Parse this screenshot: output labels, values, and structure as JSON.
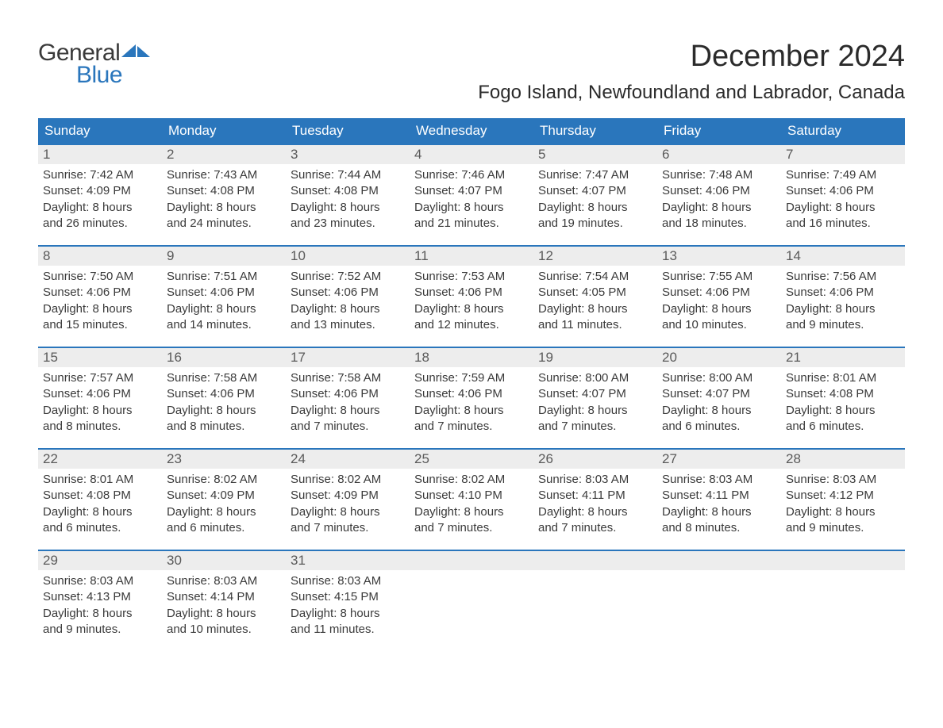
{
  "logo": {
    "word1": "General",
    "word2": "Blue",
    "word1_color": "#3a3a3a",
    "word2_color": "#2a76bc"
  },
  "title": "December 2024",
  "location": "Fogo Island, Newfoundland and Labrador, Canada",
  "header_bg": "#2a76bc",
  "header_fg": "#ffffff",
  "daynum_bg": "#ededed",
  "cell_border_color": "#2a76bc",
  "text_color": "#3a3a3a",
  "font_family": "Arial, Helvetica, sans-serif",
  "title_fontsize": 38,
  "location_fontsize": 24,
  "header_fontsize": 17,
  "content_fontsize": 15,
  "day_headers": [
    "Sunday",
    "Monday",
    "Tuesday",
    "Wednesday",
    "Thursday",
    "Friday",
    "Saturday"
  ],
  "weeks": [
    [
      {
        "n": "1",
        "sunrise": "7:42 AM",
        "sunset": "4:09 PM",
        "day_h": "8",
        "day_m": "26"
      },
      {
        "n": "2",
        "sunrise": "7:43 AM",
        "sunset": "4:08 PM",
        "day_h": "8",
        "day_m": "24"
      },
      {
        "n": "3",
        "sunrise": "7:44 AM",
        "sunset": "4:08 PM",
        "day_h": "8",
        "day_m": "23"
      },
      {
        "n": "4",
        "sunrise": "7:46 AM",
        "sunset": "4:07 PM",
        "day_h": "8",
        "day_m": "21"
      },
      {
        "n": "5",
        "sunrise": "7:47 AM",
        "sunset": "4:07 PM",
        "day_h": "8",
        "day_m": "19"
      },
      {
        "n": "6",
        "sunrise": "7:48 AM",
        "sunset": "4:06 PM",
        "day_h": "8",
        "day_m": "18"
      },
      {
        "n": "7",
        "sunrise": "7:49 AM",
        "sunset": "4:06 PM",
        "day_h": "8",
        "day_m": "16"
      }
    ],
    [
      {
        "n": "8",
        "sunrise": "7:50 AM",
        "sunset": "4:06 PM",
        "day_h": "8",
        "day_m": "15"
      },
      {
        "n": "9",
        "sunrise": "7:51 AM",
        "sunset": "4:06 PM",
        "day_h": "8",
        "day_m": "14"
      },
      {
        "n": "10",
        "sunrise": "7:52 AM",
        "sunset": "4:06 PM",
        "day_h": "8",
        "day_m": "13"
      },
      {
        "n": "11",
        "sunrise": "7:53 AM",
        "sunset": "4:06 PM",
        "day_h": "8",
        "day_m": "12"
      },
      {
        "n": "12",
        "sunrise": "7:54 AM",
        "sunset": "4:05 PM",
        "day_h": "8",
        "day_m": "11"
      },
      {
        "n": "13",
        "sunrise": "7:55 AM",
        "sunset": "4:06 PM",
        "day_h": "8",
        "day_m": "10"
      },
      {
        "n": "14",
        "sunrise": "7:56 AM",
        "sunset": "4:06 PM",
        "day_h": "8",
        "day_m": "9"
      }
    ],
    [
      {
        "n": "15",
        "sunrise": "7:57 AM",
        "sunset": "4:06 PM",
        "day_h": "8",
        "day_m": "8"
      },
      {
        "n": "16",
        "sunrise": "7:58 AM",
        "sunset": "4:06 PM",
        "day_h": "8",
        "day_m": "8"
      },
      {
        "n": "17",
        "sunrise": "7:58 AM",
        "sunset": "4:06 PM",
        "day_h": "8",
        "day_m": "7"
      },
      {
        "n": "18",
        "sunrise": "7:59 AM",
        "sunset": "4:06 PM",
        "day_h": "8",
        "day_m": "7"
      },
      {
        "n": "19",
        "sunrise": "8:00 AM",
        "sunset": "4:07 PM",
        "day_h": "8",
        "day_m": "7"
      },
      {
        "n": "20",
        "sunrise": "8:00 AM",
        "sunset": "4:07 PM",
        "day_h": "8",
        "day_m": "6"
      },
      {
        "n": "21",
        "sunrise": "8:01 AM",
        "sunset": "4:08 PM",
        "day_h": "8",
        "day_m": "6"
      }
    ],
    [
      {
        "n": "22",
        "sunrise": "8:01 AM",
        "sunset": "4:08 PM",
        "day_h": "8",
        "day_m": "6"
      },
      {
        "n": "23",
        "sunrise": "8:02 AM",
        "sunset": "4:09 PM",
        "day_h": "8",
        "day_m": "6"
      },
      {
        "n": "24",
        "sunrise": "8:02 AM",
        "sunset": "4:09 PM",
        "day_h": "8",
        "day_m": "7"
      },
      {
        "n": "25",
        "sunrise": "8:02 AM",
        "sunset": "4:10 PM",
        "day_h": "8",
        "day_m": "7"
      },
      {
        "n": "26",
        "sunrise": "8:03 AM",
        "sunset": "4:11 PM",
        "day_h": "8",
        "day_m": "7"
      },
      {
        "n": "27",
        "sunrise": "8:03 AM",
        "sunset": "4:11 PM",
        "day_h": "8",
        "day_m": "8"
      },
      {
        "n": "28",
        "sunrise": "8:03 AM",
        "sunset": "4:12 PM",
        "day_h": "8",
        "day_m": "9"
      }
    ],
    [
      {
        "n": "29",
        "sunrise": "8:03 AM",
        "sunset": "4:13 PM",
        "day_h": "8",
        "day_m": "9"
      },
      {
        "n": "30",
        "sunrise": "8:03 AM",
        "sunset": "4:14 PM",
        "day_h": "8",
        "day_m": "10"
      },
      {
        "n": "31",
        "sunrise": "8:03 AM",
        "sunset": "4:15 PM",
        "day_h": "8",
        "day_m": "11"
      },
      null,
      null,
      null,
      null
    ]
  ],
  "labels": {
    "sunrise": "Sunrise: ",
    "sunset": "Sunset: ",
    "daylight_prefix": "Daylight: ",
    "hours_word": " hours",
    "and_word": "and ",
    "minutes_word": " minutes."
  }
}
